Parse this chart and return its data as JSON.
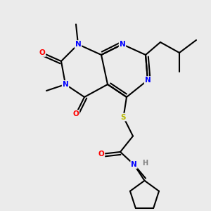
{
  "bg_color": "#ebebeb",
  "atom_colors": {
    "N": "#0000ff",
    "O": "#ff0000",
    "S": "#b8b800",
    "C": "#000000",
    "H": "#808080"
  },
  "bond_color": "#000000",
  "bond_width": 1.5
}
